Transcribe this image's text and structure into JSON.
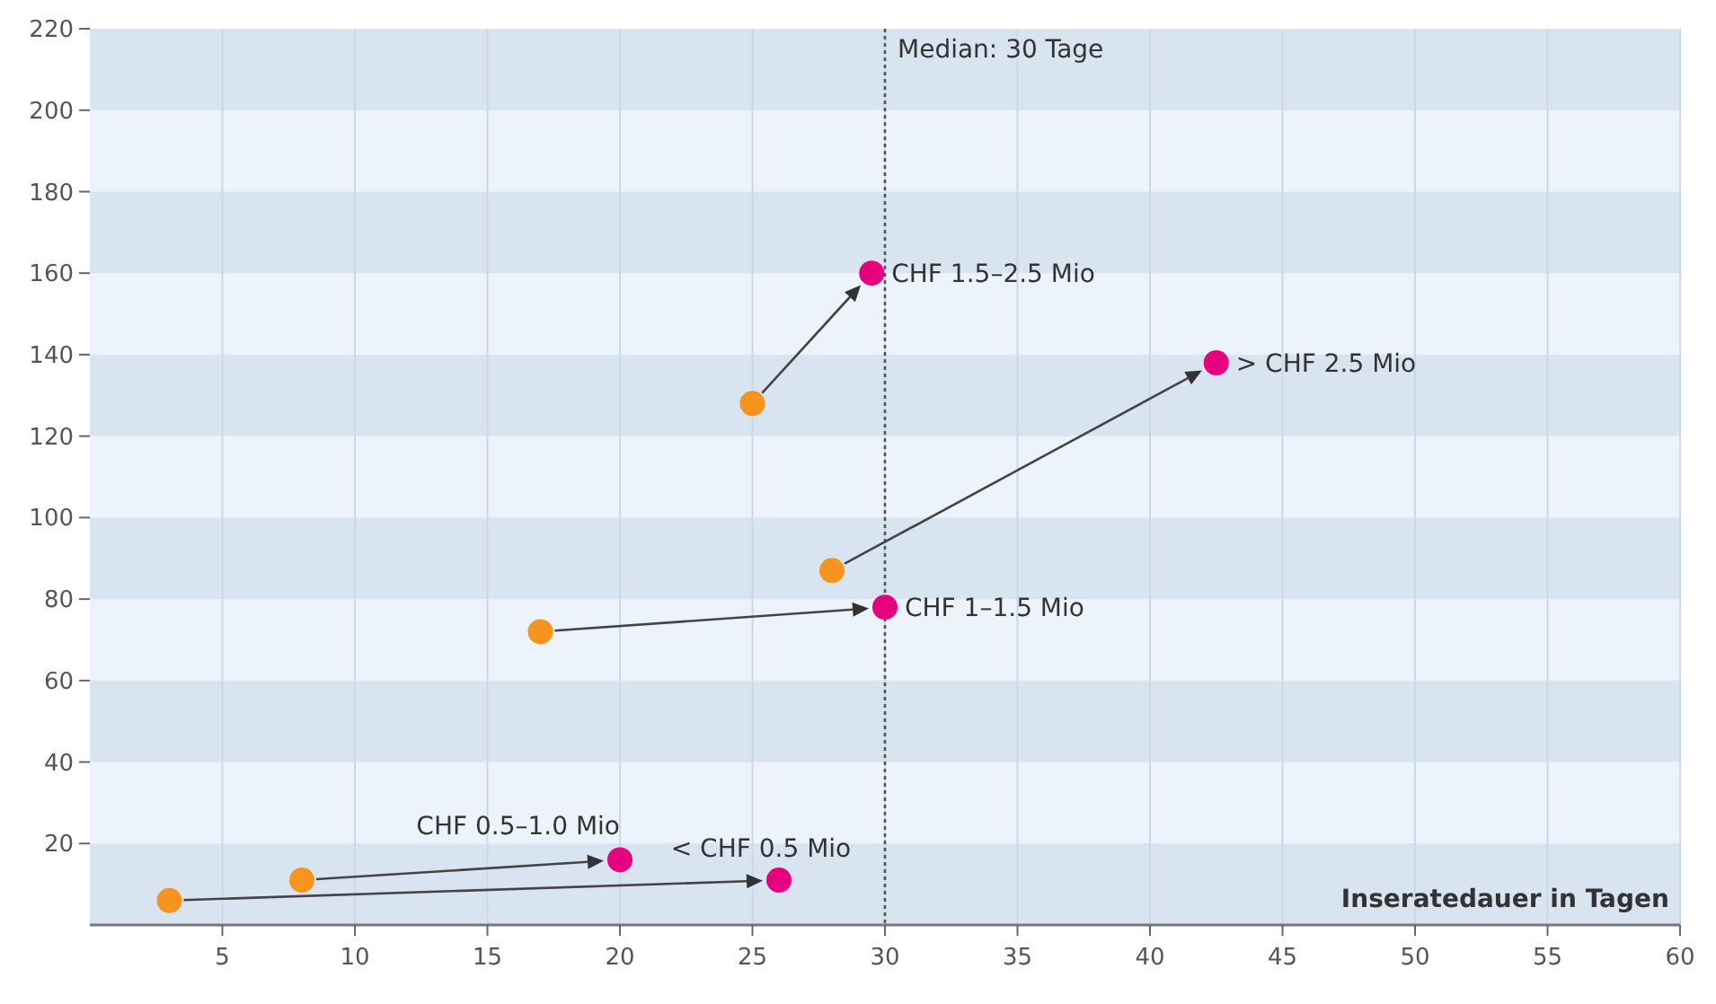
{
  "chart_data": {
    "type": "scatter",
    "xlabel": "Inseratedauer in Tagen",
    "xlim": [
      0,
      60
    ],
    "ylim": [
      0,
      220
    ],
    "xticks": [
      5,
      10,
      15,
      20,
      25,
      30,
      35,
      40,
      45,
      50,
      55,
      60
    ],
    "yticks": [
      20,
      40,
      60,
      80,
      100,
      120,
      140,
      160,
      180,
      200,
      220
    ],
    "grid": true,
    "marker": "circle",
    "series": [
      {
        "color": "#f7941d",
        "x": [
          3,
          8,
          17,
          28,
          25
        ],
        "values": [
          6,
          11,
          72,
          87,
          128
        ]
      },
      {
        "color": "#e6007e",
        "x": [
          26,
          20,
          30,
          42.5,
          29.5
        ],
        "values": [
          11,
          16,
          78,
          138,
          160
        ]
      }
    ],
    "ref_lines": [
      {
        "axis": "x",
        "value": 30,
        "label": "Median: 30 Tage",
        "line_style": "dotted",
        "color": "#555555"
      }
    ],
    "annotations": [
      {
        "text": "< CHF 0.5 Mio",
        "x": 26,
        "y": 11
      },
      {
        "text": "CHF 0.5–1.0 Mio",
        "x": 20,
        "y": 16
      },
      {
        "text": "CHF 1–1.5 Mio",
        "x": 30,
        "y": 78
      },
      {
        "text": "> CHF 2.5 Mio",
        "x": 42.5,
        "y": 138
      },
      {
        "text": "CHF 1.5–2.5 Mio",
        "x": 29.5,
        "y": 160
      }
    ]
  }
}
